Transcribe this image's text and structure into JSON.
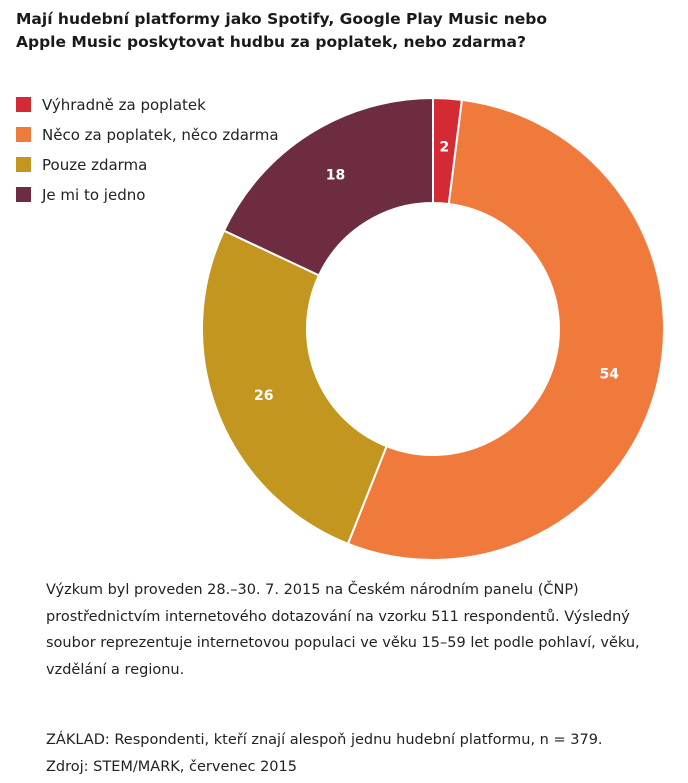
{
  "title": {
    "line1": "Mají hudební platformy jako Spotify, Google Play Music nebo",
    "line2": "Apple Music poskytovat hudbu za poplatek, nebo zdarma?"
  },
  "chart_data": {
    "type": "pie",
    "title": "Mají hudební platformy jako Spotify, Google Play Music nebo Apple Music poskytovat hudbu za poplatek, nebo zdarma?",
    "categories": [
      "Výhradně za poplatek",
      "Něco za poplatek, něco zdarma",
      "Pouze zdarma",
      "Je mi to jedno"
    ],
    "values": [
      2,
      54,
      26,
      18
    ],
    "colors": [
      "#d42a33",
      "#f07a3c",
      "#c2961f",
      "#6e2c40"
    ],
    "labels": [
      "2",
      "54",
      "26",
      "18"
    ],
    "donut": true,
    "legend_position": "top-left"
  },
  "note": {
    "line1": "Výzkum byl proveden 28.–30. 7. 2015 na Českém národním panelu (ČNP)",
    "line2": "prostřednictvím internetového dotazování na vzorku 511 respondentů. Výsledný",
    "line3": "soubor reprezentuje internetovou populaci ve věku 15–59 let podle pohlaví, věku,",
    "line4": "vzdělání a regionu."
  },
  "basis": {
    "line1": "ZÁKLAD: Respondenti, kteří znají alespoň jednu hudební platformu, n = 379.",
    "line2": "Zdroj: STEM/MARK, červenec 2015"
  }
}
